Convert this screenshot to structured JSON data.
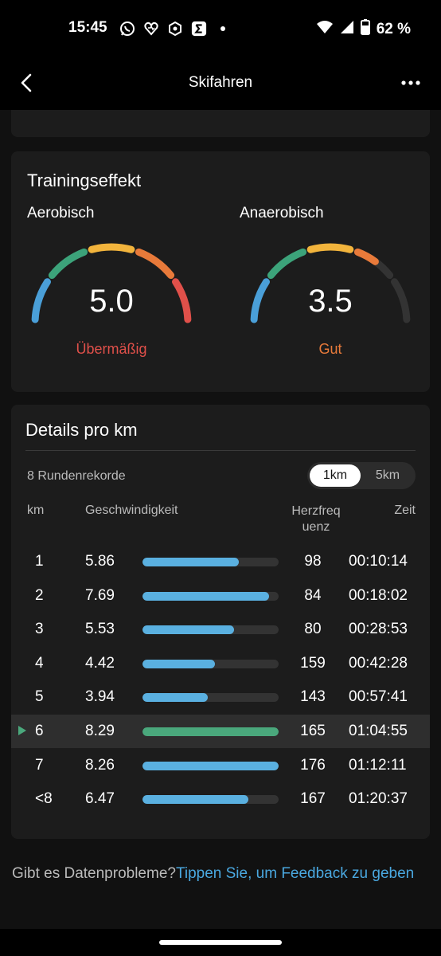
{
  "status_bar": {
    "time": "15:45",
    "battery": "62 %",
    "icons_left": [
      "whatsapp-icon",
      "heart-icon",
      "hexagon-icon",
      "sigma-icon",
      "dot-icon"
    ],
    "icons_right": [
      "wifi-icon",
      "signal-icon",
      "battery-icon"
    ]
  },
  "app_bar": {
    "title": "Skifahren"
  },
  "training_effect": {
    "title": "Trainingseffekt",
    "aerobic": {
      "label": "Aerobisch",
      "value": "5.0",
      "status": "Übermäßig",
      "status_color": "#e0504a"
    },
    "anaerobic": {
      "label": "Anaerobisch",
      "value": "3.5",
      "status": "Gut",
      "status_color": "#e87a3a"
    },
    "gauge_colors": [
      "#4a9fd8",
      "#3ca37a",
      "#f2b43c",
      "#e87a3a",
      "#e0504a"
    ]
  },
  "details": {
    "title": "Details pro km",
    "records": "8 Rundenrekorde",
    "toggle": {
      "active": "1km",
      "inactive": "5km"
    },
    "columns": {
      "km": "km",
      "speed": "Geschwindigkeit",
      "hr_line1": "Herzfreq",
      "hr_line2": "uenz",
      "time": "Zeit"
    },
    "rows": [
      {
        "km": "1",
        "speed": "5.86",
        "bar": 0.71,
        "hr": "98",
        "time": "00:10:14",
        "highlight": false
      },
      {
        "km": "2",
        "speed": "7.69",
        "bar": 0.93,
        "hr": "84",
        "time": "00:18:02",
        "highlight": false
      },
      {
        "km": "3",
        "speed": "5.53",
        "bar": 0.67,
        "hr": "80",
        "time": "00:28:53",
        "highlight": false
      },
      {
        "km": "4",
        "speed": "4.42",
        "bar": 0.53,
        "hr": "159",
        "time": "00:42:28",
        "highlight": false
      },
      {
        "km": "5",
        "speed": "3.94",
        "bar": 0.48,
        "hr": "143",
        "time": "00:57:41",
        "highlight": false
      },
      {
        "km": "6",
        "speed": "8.29",
        "bar": 1.0,
        "hr": "165",
        "time": "01:04:55",
        "highlight": true
      },
      {
        "km": "7",
        "speed": "8.26",
        "bar": 1.0,
        "hr": "176",
        "time": "01:12:11",
        "highlight": false
      },
      {
        "km": "<8",
        "speed": "6.47",
        "bar": 0.78,
        "hr": "167",
        "time": "01:20:37",
        "highlight": false
      }
    ],
    "bar_color": "#5ab0e0",
    "bar_highlight_color": "#4aa87c"
  },
  "feedback": {
    "question": "Gibt es Datenprobleme?",
    "link": "Tippen Sie, um Feedback zu geben"
  }
}
